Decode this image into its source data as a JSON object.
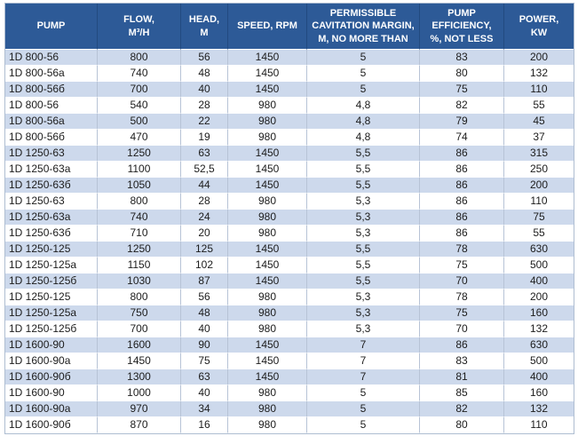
{
  "colors": {
    "header_background": "#2d5a97",
    "header_text": "#ffffff",
    "header_divider": "#224a80",
    "row_stripe": "#cdd9ec",
    "row_plain": "#ffffff",
    "grid_vertical": "#b7c3d6",
    "outer_border": "#aebdd1",
    "body_text": "#1c1c1c"
  },
  "table": {
    "columns": [
      {
        "key": "pump",
        "label": "PUMP"
      },
      {
        "key": "flow",
        "label": "FLOW,\nM³/H"
      },
      {
        "key": "head",
        "label": "HEAD,\nM"
      },
      {
        "key": "speed",
        "label": "SPEED, RPM"
      },
      {
        "key": "cavitation",
        "label": "PERMISSIBLE\nCAVITATION MARGIN,\nM, NO MORE THAN"
      },
      {
        "key": "efficiency",
        "label": "PUMP\nEFFICIENCY,\n%, NOT LESS"
      },
      {
        "key": "power",
        "label": "POWER,\nKW"
      }
    ],
    "rows": [
      [
        "1D 800-56",
        "800",
        "56",
        "1450",
        "5",
        "83",
        "200"
      ],
      [
        "1D 800-56a",
        "740",
        "48",
        "1450",
        "5",
        "80",
        "132"
      ],
      [
        "1D 800-56б",
        "700",
        "40",
        "1450",
        "5",
        "75",
        "110"
      ],
      [
        "1D 800-56",
        "540",
        "28",
        "980",
        "4,8",
        "82",
        "55"
      ],
      [
        "1D 800-56a",
        "500",
        "22",
        "980",
        "4,8",
        "79",
        "45"
      ],
      [
        "1D 800-56б",
        "470",
        "19",
        "980",
        "4,8",
        "74",
        "37"
      ],
      [
        "1D 1250-63",
        "1250",
        "63",
        "1450",
        "5,5",
        "86",
        "315"
      ],
      [
        "1D 1250-63a",
        "1100",
        "52,5",
        "1450",
        "5,5",
        "86",
        "250"
      ],
      [
        "1D 1250-63б",
        "1050",
        "44",
        "1450",
        "5,5",
        "86",
        "200"
      ],
      [
        "1D 1250-63",
        "800",
        "28",
        "980",
        "5,3",
        "86",
        "110"
      ],
      [
        "1D 1250-63a",
        "740",
        "24",
        "980",
        "5,3",
        "86",
        "75"
      ],
      [
        "1D 1250-63б",
        "710",
        "20",
        "980",
        "5,3",
        "86",
        "55"
      ],
      [
        "1D 1250-125",
        "1250",
        "125",
        "1450",
        "5,5",
        "78",
        "630"
      ],
      [
        "1D 1250-125a",
        "1150",
        "102",
        "1450",
        "5,5",
        "75",
        "500"
      ],
      [
        "1D 1250-125б",
        "1030",
        "87",
        "1450",
        "5,5",
        "70",
        "400"
      ],
      [
        "1D 1250-125",
        "800",
        "56",
        "980",
        "5,3",
        "78",
        "200"
      ],
      [
        "1D 1250-125a",
        "750",
        "48",
        "980",
        "5,3",
        "75",
        "160"
      ],
      [
        "1D 1250-125б",
        "700",
        "40",
        "980",
        "5,3",
        "70",
        "132"
      ],
      [
        "1D 1600-90",
        "1600",
        "90",
        "1450",
        "7",
        "86",
        "630"
      ],
      [
        "1D 1600-90a",
        "1450",
        "75",
        "1450",
        "7",
        "83",
        "500"
      ],
      [
        "1D 1600-90б",
        "1300",
        "63",
        "1450",
        "7",
        "81",
        "400"
      ],
      [
        "1D 1600-90",
        "1000",
        "40",
        "980",
        "5",
        "85",
        "160"
      ],
      [
        "1D 1600-90a",
        "970",
        "34",
        "980",
        "5",
        "82",
        "132"
      ],
      [
        "1D 1600-90б",
        "870",
        "16",
        "980",
        "5",
        "80",
        "110"
      ]
    ]
  }
}
